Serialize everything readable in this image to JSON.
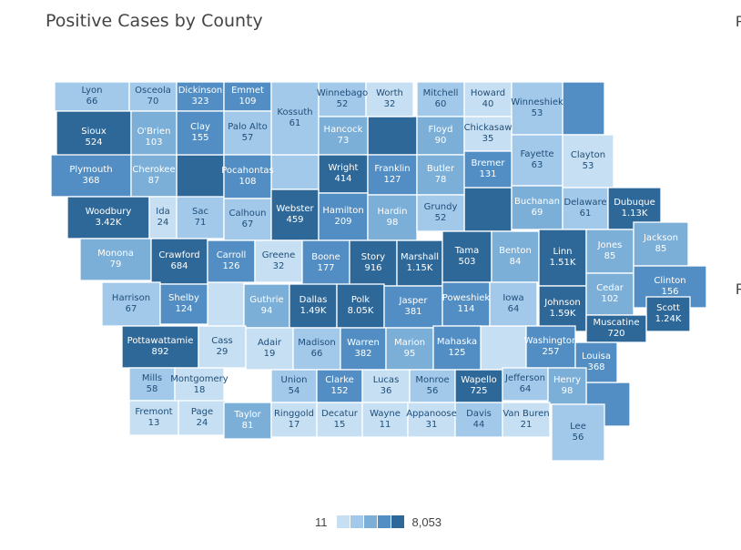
{
  "title": "Positive Cases by County",
  "edge_letters": [
    "F",
    "F"
  ],
  "legend": {
    "min_label": "11",
    "max_label": "8,053"
  },
  "colors": {
    "scale": [
      "#c6dff3",
      "#a3c9ea",
      "#7bafd7",
      "#528ec3",
      "#2e6899"
    ],
    "border": "#ffffff"
  },
  "counties": [
    {
      "name": "Lyon",
      "value": "66",
      "bin": 1
    },
    {
      "name": "Osceola",
      "value": "70",
      "bin": 1
    },
    {
      "name": "Dickinson",
      "value": "323",
      "bin": 3
    },
    {
      "name": "Emmet",
      "value": "109",
      "bin": 3
    },
    {
      "name": "Kossuth",
      "value": "61",
      "bin": 1
    },
    {
      "name": "Winnebago",
      "value": "52",
      "bin": 1
    },
    {
      "name": "Worth",
      "value": "32",
      "bin": 0
    },
    {
      "name": "Mitchell",
      "value": "60",
      "bin": 1
    },
    {
      "name": "Howard",
      "value": "40",
      "bin": 0
    },
    {
      "name": "Winneshiek",
      "value": "53",
      "bin": 1
    },
    {
      "name": "Sioux",
      "value": "524",
      "bin": 4
    },
    {
      "name": "O'Brien",
      "value": "103",
      "bin": 2
    },
    {
      "name": "Clay",
      "value": "155",
      "bin": 3
    },
    {
      "name": "Palo Alto",
      "value": "57",
      "bin": 1
    },
    {
      "name": "Hancock",
      "value": "73",
      "bin": 2
    },
    {
      "name": "Floyd",
      "value": "90",
      "bin": 2
    },
    {
      "name": "Chickasaw",
      "value": "35",
      "bin": 0
    },
    {
      "name": "Fayette",
      "value": "63",
      "bin": 1
    },
    {
      "name": "Clayton",
      "value": "53",
      "bin": 0
    },
    {
      "name": "Plymouth",
      "value": "368",
      "bin": 3
    },
    {
      "name": "Cherokee",
      "value": "87",
      "bin": 2
    },
    {
      "name": "Pocahontas",
      "value": "108",
      "bin": 3
    },
    {
      "name": "Wright",
      "value": "414",
      "bin": 4
    },
    {
      "name": "Franklin",
      "value": "127",
      "bin": 3
    },
    {
      "name": "Butler",
      "value": "78",
      "bin": 2
    },
    {
      "name": "Bremer",
      "value": "131",
      "bin": 3
    },
    {
      "name": "Woodbury",
      "value": "3.42K",
      "bin": 4
    },
    {
      "name": "Ida",
      "value": "24",
      "bin": 0
    },
    {
      "name": "Sac",
      "value": "71",
      "bin": 1
    },
    {
      "name": "Calhoun",
      "value": "67",
      "bin": 1
    },
    {
      "name": "Webster",
      "value": "459",
      "bin": 4
    },
    {
      "name": "Hamilton",
      "value": "209",
      "bin": 3
    },
    {
      "name": "Hardin",
      "value": "98",
      "bin": 2
    },
    {
      "name": "Grundy",
      "value": "52",
      "bin": 1
    },
    {
      "name": "Buchanan",
      "value": "69",
      "bin": 2
    },
    {
      "name": "Delaware",
      "value": "61",
      "bin": 1
    },
    {
      "name": "Dubuque",
      "value": "1.13K",
      "bin": 4
    },
    {
      "name": "Monona",
      "value": "79",
      "bin": 2
    },
    {
      "name": "Crawford",
      "value": "684",
      "bin": 4
    },
    {
      "name": "Carroll",
      "value": "126",
      "bin": 3
    },
    {
      "name": "Greene",
      "value": "32",
      "bin": 0
    },
    {
      "name": "Boone",
      "value": "177",
      "bin": 3
    },
    {
      "name": "Story",
      "value": "916",
      "bin": 4
    },
    {
      "name": "Marshall",
      "value": "1.15K",
      "bin": 4
    },
    {
      "name": "Tama",
      "value": "503",
      "bin": 4
    },
    {
      "name": "Benton",
      "value": "84",
      "bin": 2
    },
    {
      "name": "Linn",
      "value": "1.51K",
      "bin": 4
    },
    {
      "name": "Jones",
      "value": "85",
      "bin": 2
    },
    {
      "name": "Jackson",
      "value": "85",
      "bin": 2
    },
    {
      "name": "Harrison",
      "value": "67",
      "bin": 1
    },
    {
      "name": "Shelby",
      "value": "124",
      "bin": 3
    },
    {
      "name": "Guthrie",
      "value": "94",
      "bin": 2
    },
    {
      "name": "Dallas",
      "value": "1.49K",
      "bin": 4
    },
    {
      "name": "Polk",
      "value": "8.05K",
      "bin": 4
    },
    {
      "name": "Jasper",
      "value": "381",
      "bin": 3
    },
    {
      "name": "Poweshiek",
      "value": "114",
      "bin": 3
    },
    {
      "name": "Iowa",
      "value": "64",
      "bin": 1
    },
    {
      "name": "Johnson",
      "value": "1.59K",
      "bin": 4
    },
    {
      "name": "Cedar",
      "value": "102",
      "bin": 2
    },
    {
      "name": "Clinton",
      "value": "156",
      "bin": 3
    },
    {
      "name": "Scott",
      "value": "1.24K",
      "bin": 4
    },
    {
      "name": "Muscatine",
      "value": "720",
      "bin": 4
    },
    {
      "name": "Pottawattamie",
      "value": "892",
      "bin": 4
    },
    {
      "name": "Cass",
      "value": "29",
      "bin": 0
    },
    {
      "name": "Adair",
      "value": "19",
      "bin": 0
    },
    {
      "name": "Madison",
      "value": "66",
      "bin": 1
    },
    {
      "name": "Warren",
      "value": "382",
      "bin": 3
    },
    {
      "name": "Marion",
      "value": "95",
      "bin": 2
    },
    {
      "name": "Mahaska",
      "value": "125",
      "bin": 3
    },
    {
      "name": "Washington",
      "value": "257",
      "bin": 3
    },
    {
      "name": "Louisa",
      "value": "368",
      "bin": 3
    },
    {
      "name": "Mills",
      "value": "58",
      "bin": 1
    },
    {
      "name": "Montgomery",
      "value": "18",
      "bin": 0
    },
    {
      "name": "Union",
      "value": "54",
      "bin": 1
    },
    {
      "name": "Clarke",
      "value": "152",
      "bin": 3
    },
    {
      "name": "Lucas",
      "value": "36",
      "bin": 0
    },
    {
      "name": "Monroe",
      "value": "56",
      "bin": 1
    },
    {
      "name": "Wapello",
      "value": "725",
      "bin": 4
    },
    {
      "name": "Jefferson",
      "value": "64",
      "bin": 1
    },
    {
      "name": "Henry",
      "value": "98",
      "bin": 2
    },
    {
      "name": "Fremont",
      "value": "13",
      "bin": 0
    },
    {
      "name": "Page",
      "value": "24",
      "bin": 0
    },
    {
      "name": "Taylor",
      "value": "81",
      "bin": 2
    },
    {
      "name": "Ringgold",
      "value": "17",
      "bin": 0
    },
    {
      "name": "Decatur",
      "value": "15",
      "bin": 0
    },
    {
      "name": "Wayne",
      "value": "11",
      "bin": 0
    },
    {
      "name": "Appanoose",
      "value": "31",
      "bin": 0
    },
    {
      "name": "Davis",
      "value": "44",
      "bin": 1
    },
    {
      "name": "Van Buren",
      "value": "21",
      "bin": 0
    },
    {
      "name": "Lee",
      "value": "56",
      "bin": 1
    }
  ],
  "unlabeled_counties": [
    {
      "id": "humboldt",
      "bin": 1
    },
    {
      "id": "cerro-gordo",
      "bin": 4
    },
    {
      "id": "black-hawk",
      "bin": 4
    },
    {
      "id": "allamakee",
      "bin": 3
    },
    {
      "id": "buena-vista",
      "bin": 4
    },
    {
      "id": "audubon",
      "bin": 0
    },
    {
      "id": "keokuk",
      "bin": 0
    },
    {
      "id": "des-moines",
      "bin": 3
    }
  ]
}
